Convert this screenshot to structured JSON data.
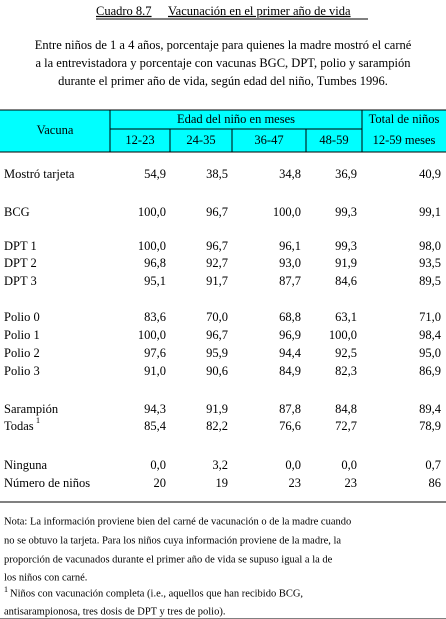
{
  "header": {
    "label": "Cuadro 8.7",
    "title": "Vacunación en el primer año de vida",
    "subtitle": [
      "Entre niños de 1 a 4 años, porcentaje para quienes la madre mostró el carné",
      "a la entrevistadora y porcentaje con vacunas BGC, DPT, polio y sarampión",
      "durante el primer año de vida, según edad del niño, Tumbes 1996."
    ]
  },
  "table": {
    "columns": {
      "row_label": "Vacuna",
      "group": "Edad del niño en meses",
      "ages": [
        "12-23",
        "24-35",
        "36-47",
        "48-59"
      ],
      "total": [
        "Total de niños",
        "12-59 meses"
      ]
    },
    "rows": [
      {
        "label": "Mostró tarjeta",
        "cells": [
          "54,9",
          "38,5",
          "34,8",
          "36,9",
          "40,9"
        ]
      },
      {
        "label": "BCG",
        "cells": [
          "100,0",
          "96,7",
          "100,0",
          "99,3",
          "99,1"
        ]
      },
      {
        "label": "DPT 1",
        "cells": [
          "100,0",
          "96,7",
          "96,1",
          "99,3",
          "98,0"
        ]
      },
      {
        "label": "DPT 2",
        "cells": [
          "96,8",
          "92,7",
          "93,0",
          "91,9",
          "93,5"
        ]
      },
      {
        "label": "DPT 3",
        "cells": [
          "95,1",
          "91,7",
          "87,7",
          "84,6",
          "89,5"
        ]
      },
      {
        "label": "Polio 0",
        "cells": [
          "83,6",
          "70,0",
          "68,8",
          "63,1",
          "71,0"
        ]
      },
      {
        "label": "Polio 1",
        "cells": [
          "100,0",
          "96,7",
          "96,9",
          "100,0",
          "98,4"
        ]
      },
      {
        "label": "Polio 2",
        "cells": [
          "97,6",
          "95,9",
          "94,4",
          "92,5",
          "95,0"
        ]
      },
      {
        "label": "Polio 3",
        "cells": [
          "91,0",
          "90,6",
          "84,9",
          "82,3",
          "86,9"
        ]
      },
      {
        "label": "Sarampión",
        "cells": [
          "94,3",
          "91,9",
          "87,8",
          "84,8",
          "89,4"
        ]
      },
      {
        "label": "Todas",
        "footnote_mark": "1",
        "cells": [
          "85,4",
          "82,2",
          "76,6",
          "72,7",
          "78,9"
        ]
      },
      {
        "label": "Ninguna",
        "cells": [
          "0,0",
          "3,2",
          "0,0",
          "0,0",
          "0,7"
        ]
      },
      {
        "label": "Número de niños",
        "cells": [
          "20",
          "19",
          "23",
          "23",
          "86"
        ]
      }
    ]
  },
  "notes": {
    "note": [
      "Nota: La información proviene bien del carné de vacunación o de la madre cuando",
      "no se obtuvo la tarjeta. Para los niños cuya información proviene de la madre, la",
      "proporción de vacunados durante el primer año de vida se supuso igual a la de",
      "los niños con carné."
    ],
    "footnote_mark": "1",
    "footnote": [
      "Niños con vacunación completa (i.e., aquellos que han recibido BCG,",
      "antisarampionosa, tres dosis de DPT y tres de polio)."
    ]
  }
}
